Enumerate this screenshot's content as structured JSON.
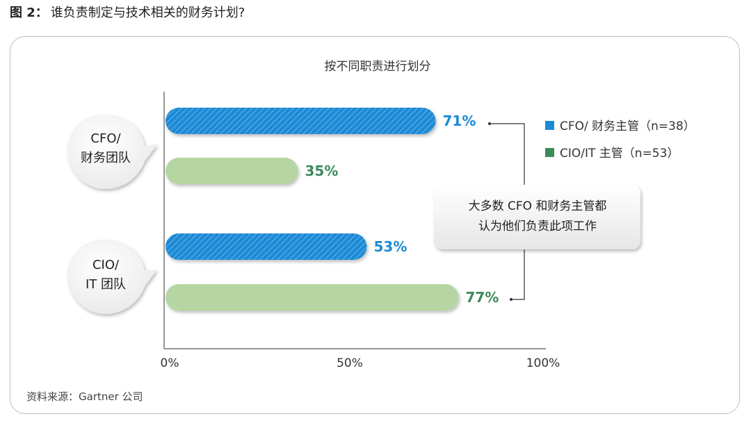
{
  "figure": {
    "number": "图 2：",
    "title": "谁负责制定与技术相关的财务计划?"
  },
  "source": "资料来源：Gartner 公司",
  "callout": {
    "lines": [
      "大多数 CFO 和财务主管都",
      "认为他们负责此项工作"
    ]
  },
  "colors": {
    "cfo_bar": "#1a8ad6",
    "cio_bar": "#b5d6a2",
    "cfo_label": "#1a8ad6",
    "cio_label": "#3c8a5a",
    "legend_cfo": "#1a8ad6",
    "legend_cio": "#3c8a5a"
  },
  "chart_data": {
    "type": "bar",
    "orientation": "horizontal",
    "title": "按不同职责进行划分",
    "categories": [
      {
        "lines": [
          "CFO/",
          "财务团队"
        ]
      },
      {
        "lines": [
          "CIO/",
          "IT 团队"
        ]
      }
    ],
    "series": [
      {
        "name": "CFO/ 财务主管（n=38）",
        "values": [
          71,
          53
        ],
        "labels": [
          "71%",
          "53%"
        ]
      },
      {
        "name": "CIO/IT 主管（n=53）",
        "values": [
          35,
          77
        ],
        "labels": [
          "35%",
          "77%"
        ]
      }
    ],
    "x_ticks": [
      "0%",
      "50%",
      "100%"
    ],
    "xlim": [
      0,
      100
    ],
    "grid": false,
    "legend": "right"
  }
}
